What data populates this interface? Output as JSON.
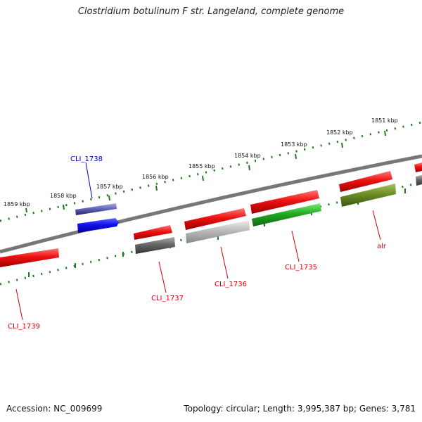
{
  "title": "Clostridium botulinum F str. Langeland, complete genome",
  "footer": {
    "accession": "Accession: NC_009699",
    "topology": "Topology: circular; Length: 3,995,387 bp; Genes: 3,781"
  },
  "scale_labels": [
    "1859 kbp",
    "1858 kbp",
    "1857 kbp",
    "1856 kbp",
    "1855 kbp",
    "1854 kbp",
    "1853 kbp",
    "1852 kbp",
    "1851 kbp"
  ],
  "gene_labels": {
    "cli_1738": "CLI_1738",
    "cli_1737": "CLI_1737",
    "cli_1736": "CLI_1736",
    "cli_1735": "CLI_1735",
    "alr": "alr",
    "cli_1739": "CLI_1739"
  },
  "colors": {
    "backbone": "#777777",
    "tick": "#1e7a1e",
    "gene_red": "#ee1111",
    "gene_gray": "#666666",
    "gene_lightgray": "#bbbbbb",
    "gene_green": "#22aa22",
    "gene_olive": "#6b8e23",
    "gene_blue": "#1111ee",
    "gene_purple": "#6666bb",
    "label_red": "#cc0000",
    "label_blue": "#0000cc"
  }
}
